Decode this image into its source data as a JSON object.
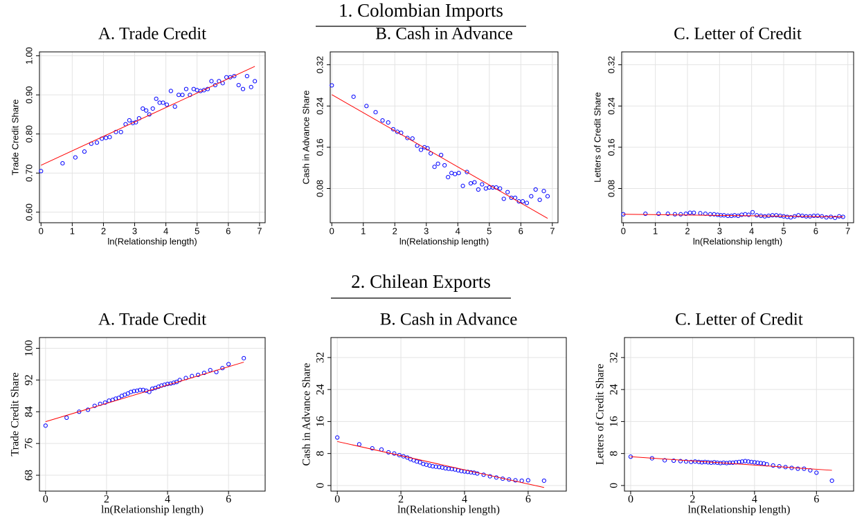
{
  "sections": [
    {
      "title": "1. Colombian Imports"
    },
    {
      "title": "2. Chilean Exports"
    }
  ],
  "chart_data": [
    {
      "type": "scatter",
      "title": "A. Trade Credit",
      "x_label": "ln(Relationship length)",
      "y_label": "Trade Credit Share",
      "grid": true,
      "xlim": [
        -0.05,
        7.18
      ],
      "xticks": [
        0,
        1,
        2,
        3,
        4,
        5,
        6,
        7
      ],
      "ylim": [
        0.573,
        1.01
      ],
      "yticks": [
        {
          "value": 0.6,
          "label": "0.60"
        },
        {
          "value": 0.7,
          "label": "0.70"
        },
        {
          "value": 0.8,
          "label": "0.80"
        },
        {
          "value": 0.9,
          "label": "0.90"
        },
        {
          "value": 1.0,
          "label": "1.00"
        }
      ],
      "series": [
        {
          "type": "scatter",
          "color": "#0000ff",
          "x": [
            0,
            0.69,
            1.1,
            1.39,
            1.61,
            1.79,
            1.95,
            2.08,
            2.2,
            2.4,
            2.56,
            2.71,
            2.83,
            2.94,
            3.04,
            3.14,
            3.26,
            3.37,
            3.47,
            3.58,
            3.69,
            3.8,
            3.91,
            4.03,
            4.16,
            4.29,
            4.41,
            4.53,
            4.65,
            4.77,
            4.89,
            5.0,
            5.11,
            5.22,
            5.34,
            5.46,
            5.58,
            5.7,
            5.82,
            5.94,
            6.06,
            6.19,
            6.33,
            6.47,
            6.6,
            6.73,
            6.85
          ],
          "values": [
            0.705,
            0.725,
            0.74,
            0.755,
            0.775,
            0.778,
            0.788,
            0.79,
            0.792,
            0.805,
            0.805,
            0.825,
            0.835,
            0.828,
            0.83,
            0.84,
            0.865,
            0.86,
            0.85,
            0.865,
            0.89,
            0.88,
            0.88,
            0.875,
            0.91,
            0.87,
            0.9,
            0.9,
            0.915,
            0.9,
            0.915,
            0.912,
            0.91,
            0.912,
            0.915,
            0.935,
            0.925,
            0.935,
            0.93,
            0.945,
            0.945,
            0.948,
            0.925,
            0.915,
            0.948,
            0.92,
            0.935
          ]
        },
        {
          "type": "line",
          "color": "#ff0000",
          "x": [
            0,
            6.85
          ],
          "values": [
            0.72,
            0.973
          ]
        }
      ]
    },
    {
      "type": "scatter",
      "title": "B. Cash in Advance",
      "x_label": "ln(Relationship length)",
      "y_label": "Cash in Advance Share",
      "grid": true,
      "xlim": [
        -0.05,
        7.18
      ],
      "xticks": [
        0,
        1,
        2,
        3,
        4,
        5,
        6,
        7
      ],
      "ylim": [
        0.0136,
        0.345
      ],
      "yticks": [
        0.08,
        0.16,
        0.24,
        0.32
      ],
      "series": [
        {
          "type": "scatter",
          "color": "#0000ff",
          "x": [
            0,
            0.69,
            1.1,
            1.39,
            1.61,
            1.79,
            1.95,
            2.08,
            2.2,
            2.4,
            2.56,
            2.71,
            2.83,
            2.94,
            3.04,
            3.14,
            3.26,
            3.37,
            3.47,
            3.58,
            3.69,
            3.8,
            3.91,
            4.03,
            4.16,
            4.29,
            4.41,
            4.53,
            4.65,
            4.77,
            4.89,
            5.0,
            5.11,
            5.22,
            5.34,
            5.46,
            5.58,
            5.7,
            5.82,
            5.94,
            6.06,
            6.19,
            6.33,
            6.47,
            6.6,
            6.73,
            6.85
          ],
          "values": [
            0.28,
            0.258,
            0.24,
            0.228,
            0.212,
            0.208,
            0.195,
            0.19,
            0.188,
            0.178,
            0.177,
            0.163,
            0.155,
            0.16,
            0.158,
            0.148,
            0.122,
            0.128,
            0.145,
            0.125,
            0.102,
            0.11,
            0.108,
            0.11,
            0.085,
            0.112,
            0.09,
            0.092,
            0.078,
            0.088,
            0.08,
            0.082,
            0.082,
            0.082,
            0.08,
            0.06,
            0.073,
            0.062,
            0.062,
            0.055,
            0.055,
            0.052,
            0.065,
            0.078,
            0.058,
            0.075,
            0.065
          ]
        },
        {
          "type": "line",
          "color": "#ff0000",
          "x": [
            0,
            6.85
          ],
          "values": [
            0.262,
            0.022
          ]
        }
      ]
    },
    {
      "type": "scatter",
      "title": "C. Letter of Credit",
      "x_label": "ln(Relationship length)",
      "y_label": "Letters of Credit Share",
      "grid": true,
      "xlim": [
        -0.05,
        7.18
      ],
      "xticks": [
        0,
        1,
        2,
        3,
        4,
        5,
        6,
        7
      ],
      "ylim": [
        0.0136,
        0.345
      ],
      "yticks": [
        0.08,
        0.16,
        0.24,
        0.32
      ],
      "series": [
        {
          "type": "scatter",
          "color": "#0000ff",
          "x": [
            0,
            0.69,
            1.1,
            1.39,
            1.61,
            1.79,
            1.95,
            2.08,
            2.2,
            2.4,
            2.56,
            2.71,
            2.83,
            2.94,
            3.04,
            3.14,
            3.26,
            3.37,
            3.47,
            3.58,
            3.69,
            3.8,
            3.91,
            4.03,
            4.16,
            4.29,
            4.41,
            4.53,
            4.65,
            4.77,
            4.89,
            5.0,
            5.11,
            5.22,
            5.34,
            5.46,
            5.58,
            5.7,
            5.82,
            5.94,
            6.06,
            6.19,
            6.33,
            6.47,
            6.6,
            6.73,
            6.85
          ],
          "values": [
            0.03,
            0.031,
            0.031,
            0.031,
            0.03,
            0.03,
            0.031,
            0.033,
            0.033,
            0.032,
            0.031,
            0.03,
            0.03,
            0.029,
            0.028,
            0.028,
            0.027,
            0.027,
            0.028,
            0.027,
            0.029,
            0.03,
            0.029,
            0.034,
            0.028,
            0.027,
            0.026,
            0.027,
            0.028,
            0.028,
            0.027,
            0.026,
            0.025,
            0.024,
            0.026,
            0.028,
            0.027,
            0.026,
            0.026,
            0.027,
            0.027,
            0.026,
            0.024,
            0.025,
            0.023,
            0.026,
            0.025
          ]
        },
        {
          "type": "line",
          "color": "#ff0000",
          "x": [
            0,
            6.85
          ],
          "values": [
            0.03,
            0.025
          ]
        }
      ]
    },
    {
      "type": "scatter",
      "title": "A. Trade Credit",
      "x_label": "ln(Relationship length)",
      "y_label": "Trade Credit Share",
      "grid": true,
      "xlim": [
        -0.2,
        7.2
      ],
      "xticks": [
        0,
        2,
        4,
        6
      ],
      "ylim": [
        64,
        102.7
      ],
      "yticks": [
        68,
        76,
        84,
        92,
        100
      ],
      "series": [
        {
          "type": "scatter",
          "color": "#0000ff",
          "x": [
            0,
            0.69,
            1.1,
            1.39,
            1.61,
            1.79,
            1.95,
            2.08,
            2.2,
            2.3,
            2.4,
            2.5,
            2.6,
            2.7,
            2.8,
            2.9,
            3.0,
            3.1,
            3.2,
            3.3,
            3.4,
            3.5,
            3.6,
            3.7,
            3.8,
            3.9,
            4.0,
            4.1,
            4.2,
            4.3,
            4.4,
            4.6,
            4.8,
            5.0,
            5.2,
            5.4,
            5.6,
            5.8,
            6.0,
            6.5
          ],
          "values": [
            80.5,
            82.5,
            84,
            84.5,
            85.5,
            86,
            86.3,
            86.8,
            87,
            87.3,
            87.5,
            88,
            88.3,
            88.6,
            89,
            89.2,
            89.3,
            89.5,
            89.5,
            89.3,
            89,
            89.8,
            90,
            90.3,
            90.6,
            90.8,
            91,
            91.1,
            91.3,
            91.5,
            92,
            92.5,
            93,
            93.3,
            93.8,
            94.5,
            94,
            95,
            96,
            97.5
          ]
        },
        {
          "type": "line",
          "color": "#ff0000",
          "x": [
            0,
            6.5
          ],
          "values": [
            81.5,
            96.5
          ]
        }
      ]
    },
    {
      "type": "scatter",
      "title": "B. Cash in Advance",
      "x_label": "ln(Relationship length)",
      "y_label": "Cash in Advance Share",
      "grid": true,
      "xlim": [
        -0.2,
        7.2
      ],
      "xticks": [
        0,
        2,
        4,
        6
      ],
      "ylim": [
        -1.4,
        37
      ],
      "yticks": [
        0,
        8,
        16,
        24,
        32
      ],
      "series": [
        {
          "type": "scatter",
          "color": "#0000ff",
          "x": [
            0,
            0.69,
            1.1,
            1.39,
            1.61,
            1.79,
            1.95,
            2.08,
            2.2,
            2.3,
            2.4,
            2.5,
            2.6,
            2.7,
            2.8,
            2.9,
            3.0,
            3.1,
            3.2,
            3.3,
            3.4,
            3.5,
            3.6,
            3.7,
            3.8,
            3.9,
            4.0,
            4.1,
            4.2,
            4.3,
            4.4,
            4.6,
            4.8,
            5.0,
            5.2,
            5.4,
            5.6,
            5.8,
            6.0,
            6.5
          ],
          "values": [
            12,
            10.3,
            9.3,
            9,
            8.3,
            8,
            7.6,
            7.3,
            7,
            6.6,
            6.3,
            6,
            5.8,
            5.4,
            5.2,
            5,
            4.8,
            4.7,
            4.6,
            4.5,
            4.3,
            4.2,
            4.1,
            4,
            3.8,
            3.6,
            3.5,
            3.4,
            3.3,
            3.2,
            3,
            2.7,
            2.3,
            2,
            1.7,
            1.5,
            1.3,
            1.2,
            1.3,
            1.2
          ]
        },
        {
          "type": "line",
          "color": "#ff0000",
          "x": [
            0,
            6.5
          ],
          "values": [
            11,
            -0.5
          ]
        }
      ]
    },
    {
      "type": "scatter",
      "title": "C. Letter of Credit",
      "x_label": "ln(Relationship length)",
      "y_label": "Letters of Credit Share",
      "grid": true,
      "xlim": [
        -0.2,
        7.2
      ],
      "xticks": [
        0,
        2,
        4,
        6
      ],
      "ylim": [
        -1.4,
        37
      ],
      "yticks": [
        0,
        8,
        16,
        24,
        32
      ],
      "series": [
        {
          "type": "scatter",
          "color": "#0000ff",
          "x": [
            0,
            0.69,
            1.1,
            1.39,
            1.61,
            1.79,
            1.95,
            2.08,
            2.2,
            2.3,
            2.4,
            2.5,
            2.6,
            2.7,
            2.8,
            2.9,
            3.0,
            3.1,
            3.2,
            3.3,
            3.4,
            3.5,
            3.6,
            3.7,
            3.8,
            3.9,
            4.0,
            4.1,
            4.2,
            4.3,
            4.4,
            4.6,
            4.8,
            5.0,
            5.2,
            5.4,
            5.6,
            5.8,
            6.0,
            6.5
          ],
          "values": [
            7.2,
            6.8,
            6.3,
            6.2,
            6.1,
            6,
            5.9,
            6,
            5.9,
            5.8,
            5.9,
            5.8,
            5.7,
            5.8,
            5.7,
            5.6,
            5.7,
            5.6,
            5.7,
            5.7,
            5.8,
            5.9,
            6,
            6.1,
            6,
            5.9,
            5.8,
            5.7,
            5.6,
            5.5,
            5.3,
            5,
            4.8,
            4.6,
            4.4,
            4.2,
            4.2,
            3.8,
            3.2,
            1.2
          ]
        },
        {
          "type": "line",
          "color": "#ff0000",
          "x": [
            0,
            6.5
          ],
          "values": [
            7.2,
            3.8
          ]
        }
      ]
    }
  ]
}
